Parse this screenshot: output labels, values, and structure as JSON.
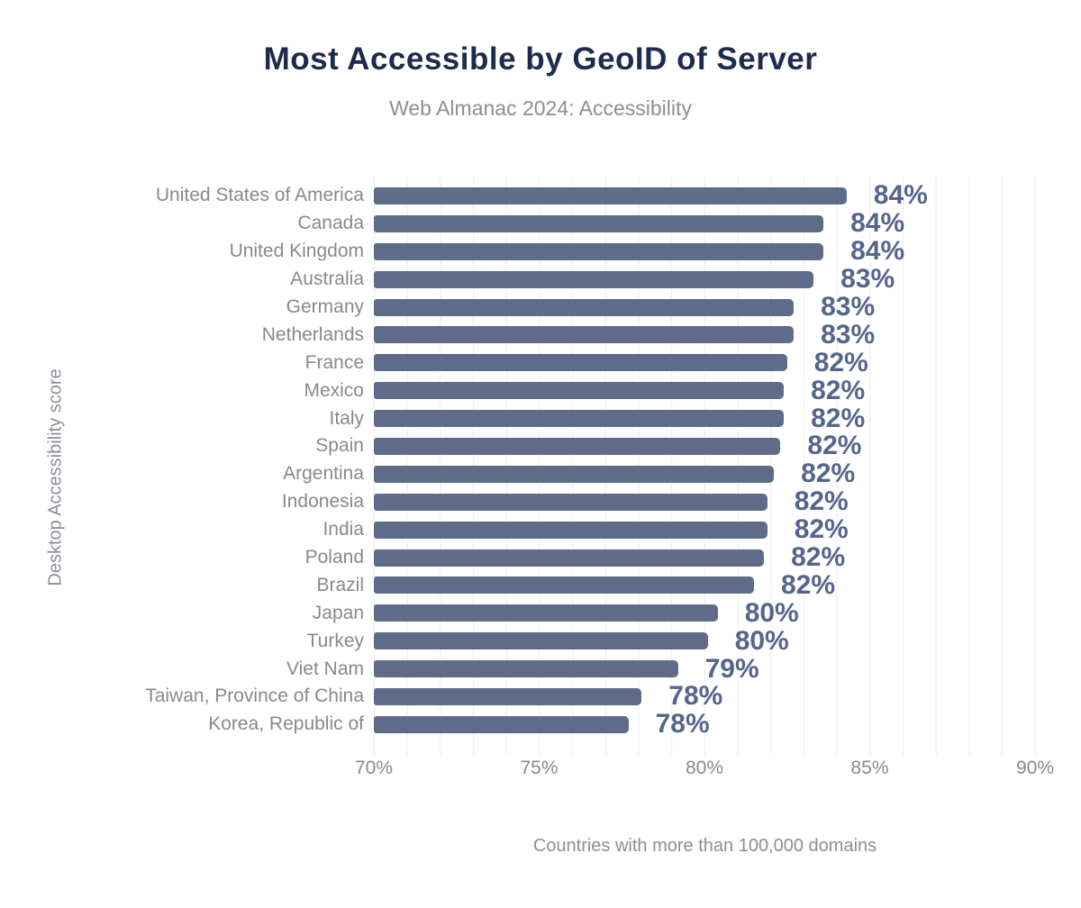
{
  "chart_data": {
    "type": "bar",
    "orientation": "horizontal",
    "title": "Most Accessible by GeoID of Server",
    "subtitle": "Web Almanac 2024: Accessibility",
    "xlabel": "Countries with more than 100,000 domains",
    "ylabel": "Desktop Accessibility score",
    "xlim": [
      70,
      90
    ],
    "x_tick_labels": [
      "70%",
      "75%",
      "80%",
      "85%",
      "90%"
    ],
    "grid": "vertical minor gridlines every 1%",
    "legend": "none",
    "categories": [
      "United States of America",
      "Canada",
      "United Kingdom",
      "Australia",
      "Germany",
      "Netherlands",
      "France",
      "Mexico",
      "Italy",
      "Spain",
      "Argentina",
      "Indonesia",
      "India",
      "Poland",
      "Brazil",
      "Japan",
      "Turkey",
      "Viet Nam",
      "Taiwan, Province of China",
      "Korea, Republic of"
    ],
    "values": [
      84.3,
      83.6,
      83.6,
      83.3,
      82.7,
      82.7,
      82.5,
      82.4,
      82.4,
      82.3,
      82.1,
      81.9,
      81.9,
      81.8,
      81.5,
      80.4,
      80.1,
      79.2,
      78.1,
      77.7
    ],
    "value_labels": [
      "84%",
      "84%",
      "84%",
      "83%",
      "83%",
      "83%",
      "82%",
      "82%",
      "82%",
      "82%",
      "82%",
      "82%",
      "82%",
      "82%",
      "82%",
      "80%",
      "80%",
      "79%",
      "78%",
      "78%"
    ]
  },
  "colors": {
    "background": "#ffffff",
    "bar": "#5e6c89",
    "value_label": "#55658c",
    "title": "#1d2b4f",
    "muted_text": "#8a8e96",
    "axis_text": "#87898d",
    "gridline": "#ececec"
  }
}
